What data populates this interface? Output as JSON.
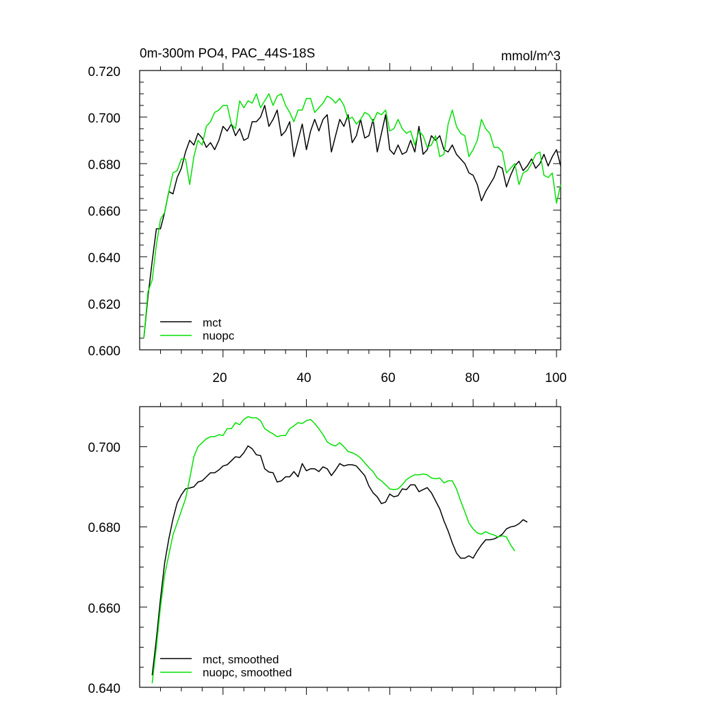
{
  "chart_data": [
    {
      "type": "line",
      "title": "0m-300m PO4, PAC_44S-18S",
      "units": "mmol/m^3",
      "xlim": [
        0,
        101
      ],
      "ylim": [
        0.6,
        0.72
      ],
      "x_ticks": [
        20,
        40,
        60,
        80,
        100
      ],
      "x_tick_labels": [
        "20",
        "40",
        "60",
        "80",
        "100"
      ],
      "y_ticks": [
        0.6,
        0.62,
        0.64,
        0.66,
        0.68,
        0.7,
        0.72
      ],
      "y_tick_labels": [
        "0.600",
        "0.620",
        "0.640",
        "0.660",
        "0.680",
        "0.700",
        "0.720"
      ],
      "legend_position": "bottom-left",
      "series": [
        {
          "name": "mct",
          "color": "#000000",
          "start_x": 1,
          "values": [
            0.605,
            0.623,
            0.638,
            0.652,
            0.652,
            0.659,
            0.668,
            0.667,
            0.674,
            0.678,
            0.685,
            0.69,
            0.688,
            0.693,
            0.691,
            0.687,
            0.689,
            0.686,
            0.69,
            0.696,
            0.694,
            0.697,
            0.692,
            0.695,
            0.69,
            0.691,
            0.698,
            0.698,
            0.7,
            0.705,
            0.696,
            0.699,
            0.703,
            0.692,
            0.694,
            0.698,
            0.683,
            0.69,
            0.697,
            0.686,
            0.694,
            0.699,
            0.694,
            0.699,
            0.701,
            0.685,
            0.692,
            0.699,
            0.696,
            0.701,
            0.689,
            0.692,
            0.699,
            0.691,
            0.692,
            0.699,
            0.685,
            0.693,
            0.701,
            0.686,
            0.684,
            0.688,
            0.684,
            0.685,
            0.69,
            0.685,
            0.696,
            0.684,
            0.686,
            0.692,
            0.69,
            0.692,
            0.686,
            0.685,
            0.688,
            0.684,
            0.682,
            0.68,
            0.676,
            0.675,
            0.671,
            0.664,
            0.668,
            0.671,
            0.674,
            0.679,
            0.678,
            0.67,
            0.675,
            0.679,
            0.681,
            0.677,
            0.679,
            0.682,
            0.678,
            0.68,
            0.684,
            0.679,
            0.683,
            0.686,
            0.679
          ]
        },
        {
          "name": "nuopc",
          "color": "#00e000",
          "start_x": 1,
          "values": [
            0.605,
            0.625,
            0.63,
            0.645,
            0.656,
            0.659,
            0.668,
            0.676,
            0.677,
            0.682,
            0.682,
            0.671,
            0.683,
            0.69,
            0.688,
            0.696,
            0.698,
            0.702,
            0.703,
            0.705,
            0.705,
            0.697,
            0.695,
            0.707,
            0.704,
            0.707,
            0.706,
            0.71,
            0.704,
            0.707,
            0.71,
            0.705,
            0.709,
            0.71,
            0.705,
            0.702,
            0.698,
            0.703,
            0.703,
            0.708,
            0.708,
            0.702,
            0.704,
            0.706,
            0.709,
            0.708,
            0.706,
            0.708,
            0.705,
            0.699,
            0.7,
            0.697,
            0.699,
            0.702,
            0.701,
            0.698,
            0.702,
            0.701,
            0.703,
            0.694,
            0.695,
            0.699,
            0.695,
            0.693,
            0.694,
            0.688,
            0.694,
            0.692,
            0.687,
            0.688,
            0.692,
            0.683,
            0.684,
            0.697,
            0.703,
            0.696,
            0.693,
            0.692,
            0.683,
            0.686,
            0.69,
            0.699,
            0.695,
            0.693,
            0.687,
            0.687,
            0.685,
            0.676,
            0.678,
            0.68,
            0.671,
            0.676,
            0.677,
            0.68,
            0.684,
            0.685,
            0.675,
            0.674,
            0.676,
            0.663,
            0.671
          ]
        }
      ]
    },
    {
      "type": "line",
      "title": "",
      "xlim": [
        0,
        101
      ],
      "ylim": [
        0.64,
        0.71
      ],
      "x_ticks": [
        20,
        40,
        60,
        80,
        100
      ],
      "y_ticks": [
        0.64,
        0.66,
        0.68,
        0.7
      ],
      "y_tick_labels": [
        "0.640",
        "0.660",
        "0.680",
        "0.700"
      ],
      "legend_position": "bottom-left",
      "series": [
        {
          "name": "mct, smoothed",
          "color": "#000000",
          "start_x": 3,
          "values": [
            0.643,
            0.652,
            0.662,
            0.671,
            0.677,
            0.682,
            0.686,
            0.688,
            0.6895,
            0.6897,
            0.69,
            0.6912,
            0.6915,
            0.6925,
            0.6935,
            0.6935,
            0.6942,
            0.6952,
            0.6955,
            0.6965,
            0.6975,
            0.6973,
            0.6985,
            0.7002,
            0.6995,
            0.698,
            0.6978,
            0.6945,
            0.6937,
            0.6935,
            0.6912,
            0.6915,
            0.6925,
            0.6925,
            0.6938,
            0.6925,
            0.6958,
            0.694,
            0.6945,
            0.6945,
            0.6938,
            0.695,
            0.6945,
            0.6928,
            0.6942,
            0.6958,
            0.6952,
            0.6955,
            0.6955,
            0.6952,
            0.694,
            0.6928,
            0.6902,
            0.6885,
            0.6875,
            0.6858,
            0.6862,
            0.6882,
            0.6875,
            0.6878,
            0.6895,
            0.6893,
            0.6905,
            0.6905,
            0.6888,
            0.6893,
            0.6898,
            0.6885,
            0.6865,
            0.6845,
            0.6815,
            0.679,
            0.676,
            0.6735,
            0.6722,
            0.6722,
            0.6728,
            0.6722,
            0.674,
            0.6755,
            0.6768,
            0.6768,
            0.677,
            0.6775,
            0.6782,
            0.6795,
            0.68,
            0.6802,
            0.6808,
            0.6818,
            0.6812
          ]
        },
        {
          "name": "nuopc, smoothed",
          "color": "#00e000",
          "start_x": 3,
          "values": [
            0.641,
            0.65,
            0.66,
            0.668,
            0.673,
            0.678,
            0.681,
            0.684,
            0.687,
            0.692,
            0.6975,
            0.7,
            0.701,
            0.702,
            0.7025,
            0.7025,
            0.703,
            0.7028,
            0.7045,
            0.7045,
            0.706,
            0.7055,
            0.7068,
            0.7075,
            0.7072,
            0.7072,
            0.7065,
            0.7045,
            0.7038,
            0.7032,
            0.7025,
            0.7028,
            0.7028,
            0.7045,
            0.7052,
            0.706,
            0.7058,
            0.7065,
            0.7068,
            0.7058,
            0.7045,
            0.703,
            0.7012,
            0.7005,
            0.7002,
            0.701,
            0.7,
            0.6988,
            0.6985,
            0.698,
            0.6972,
            0.696,
            0.6948,
            0.6938,
            0.6922,
            0.6915,
            0.6905,
            0.6895,
            0.6893,
            0.6895,
            0.6905,
            0.6918,
            0.6925,
            0.693,
            0.693,
            0.6932,
            0.693,
            0.6922,
            0.692,
            0.6922,
            0.691,
            0.6915,
            0.6915,
            0.6895,
            0.6865,
            0.6838,
            0.681,
            0.6795,
            0.6785,
            0.6782,
            0.6788,
            0.6783,
            0.678,
            0.6775,
            0.6778,
            0.6775,
            0.6755,
            0.674
          ]
        }
      ]
    }
  ]
}
